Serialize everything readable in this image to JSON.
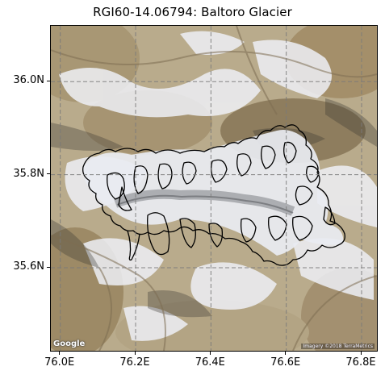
{
  "title": "RGI60-14.06794: Baltoro Glacier",
  "map": {
    "x_axis": {
      "ticks": [
        {
          "value": 76.0,
          "label": "76.0E"
        },
        {
          "value": 76.2,
          "label": "76.2E"
        },
        {
          "value": 76.4,
          "label": "76.4E"
        },
        {
          "value": 76.6,
          "label": "76.6E"
        },
        {
          "value": 76.8,
          "label": "76.8E"
        }
      ],
      "range": [
        75.975,
        76.845
      ]
    },
    "y_axis": {
      "ticks": [
        {
          "value": 36.0,
          "label": "36.0N"
        },
        {
          "value": 35.8,
          "label": "35.8N"
        },
        {
          "value": 35.6,
          "label": "35.6N"
        }
      ],
      "range": [
        35.418,
        36.12
      ]
    },
    "grid": "dashed",
    "basemap": "satellite imagery",
    "attribution": {
      "logo": "Google",
      "imagery": "Imagery ©2018 TerraMetrics"
    },
    "outline_color": "#000000"
  }
}
